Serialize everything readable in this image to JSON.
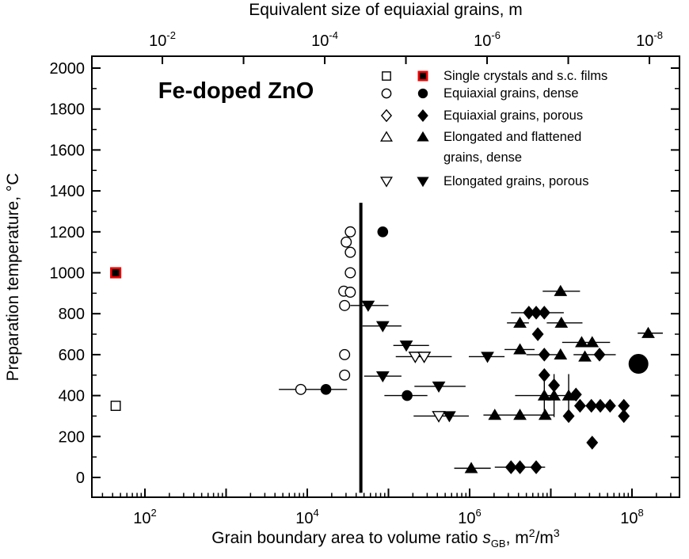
{
  "figure": {
    "top_axis_title": "Equivalent size of equiaxial grains, m",
    "y_axis_title": "Preparation temperature, °C",
    "annotation": "Fe-doped ZnO",
    "bottom_axis_title": {
      "prefix": "Grain boundary area to volume ratio ",
      "symbol": "s",
      "symbol_sub": "GB",
      "mid": ", m",
      "sup_a": "2",
      "mid2": "/m",
      "sup_b": "3"
    }
  },
  "legend": {
    "entries": [
      {
        "symbol": "square",
        "filled_edge": "#ee0000",
        "lines": [
          "Single crystals and s.c. films"
        ]
      },
      {
        "symbol": "circle",
        "lines": [
          "Equiaxial grains, dense"
        ]
      },
      {
        "symbol": "diamond",
        "lines": [
          "Equiaxial grains, porous"
        ]
      },
      {
        "symbol": "triangle-up",
        "lines": [
          "Elongated and flattened",
          "grains, dense"
        ]
      },
      {
        "symbol": "triangle-down",
        "lines": [
          "Elongated grains, porous"
        ]
      }
    ]
  },
  "chart_data": {
    "type": "scatter",
    "title": "Fe-doped ZnO",
    "x_axis": {
      "label": "Grain boundary area to volume ratio s_GB, m2/m3",
      "scale": "log10",
      "range_log": [
        1.35,
        8.59
      ],
      "labeled_ticks": [
        {
          "log": 2,
          "exp": "2"
        },
        {
          "log": 4,
          "exp": "4"
        },
        {
          "log": 6,
          "exp": "6"
        },
        {
          "log": 8,
          "exp": "8"
        }
      ],
      "decade_ticks": [
        2,
        3,
        4,
        5,
        6,
        7,
        8
      ]
    },
    "y_axis": {
      "label": "Preparation temperature, °C",
      "range": [
        -97,
        2058
      ],
      "major_ticks": [
        0,
        200,
        400,
        600,
        800,
        1000,
        1200,
        1400,
        1600,
        1800,
        2000
      ],
      "minor_step": 100
    },
    "top_axis": {
      "label": "Equivalent size of equiaxial grains, m",
      "labeled_ticks": [
        {
          "log_s": 2.215,
          "exp": "-2"
        },
        {
          "log_s": 4.215,
          "exp": "-4"
        },
        {
          "log_s": 6.215,
          "exp": "-6"
        },
        {
          "log_s": 8.215,
          "exp": "-8"
        }
      ],
      "minor_ticks_log_s": [
        3.215,
        5.215,
        7.215
      ]
    },
    "vertical_line": {
      "log_s": 4.66,
      "t_from": -75,
      "t_to": 1342
    },
    "point_format": "x = log10(s_GB in m2/m3), t = preparation temperature °C, xe = horizontal error bar [log10 lo, log10 hi], ye = vertical error bar [t lo, t hi], big = large marker",
    "series": [
      {
        "id": "single-crystal-open",
        "legend": "Single crystals and s.c. films",
        "symbol": "square",
        "filled": false,
        "points": [
          {
            "x": 1.64,
            "t": 350
          }
        ]
      },
      {
        "id": "single-crystal-filled",
        "legend": "Single crystals and s.c. films",
        "symbol": "square",
        "filled": true,
        "edge": "#ee0000",
        "points": [
          {
            "x": 1.64,
            "t": 1000
          }
        ]
      },
      {
        "id": "equiaxial-dense-open",
        "legend": "Equiaxial grains, dense",
        "symbol": "circle",
        "filled": false,
        "points": [
          {
            "x": 4.53,
            "t": 1200
          },
          {
            "x": 4.48,
            "t": 1150
          },
          {
            "x": 4.53,
            "t": 1100
          },
          {
            "x": 4.53,
            "t": 1000
          },
          {
            "x": 4.45,
            "t": 910
          },
          {
            "x": 4.53,
            "t": 905
          },
          {
            "x": 4.46,
            "t": 840
          },
          {
            "x": 4.46,
            "t": 600
          },
          {
            "x": 4.46,
            "t": 500
          },
          {
            "x": 3.92,
            "t": 430,
            "xe": [
              3.65,
              4.49
            ]
          }
        ]
      },
      {
        "id": "equiaxial-dense-filled",
        "legend": "Equiaxial grains, dense",
        "symbol": "circle",
        "filled": true,
        "points": [
          {
            "x": 4.93,
            "t": 1200
          },
          {
            "x": 4.23,
            "t": 430
          },
          {
            "x": 5.23,
            "t": 400,
            "xe": [
              4.95,
              5.48
            ]
          },
          {
            "x": 8.08,
            "t": 555,
            "big": true
          }
        ]
      },
      {
        "id": "equiaxial-porous-filled",
        "legend": "Equiaxial grains, porous",
        "symbol": "diamond",
        "filled": true,
        "points": [
          {
            "x": 6.73,
            "t": 805,
            "xe": [
              6.51,
              7.16
            ]
          },
          {
            "x": 6.82,
            "t": 805
          },
          {
            "x": 6.92,
            "t": 805
          },
          {
            "x": 6.84,
            "t": 700
          },
          {
            "x": 6.92,
            "t": 600,
            "xe": [
              6.7,
              7.16
            ]
          },
          {
            "x": 7.6,
            "t": 600,
            "xe": [
              7.28,
              7.8
            ]
          },
          {
            "x": 6.92,
            "t": 500
          },
          {
            "x": 7.04,
            "t": 450
          },
          {
            "x": 7.31,
            "t": 405
          },
          {
            "x": 7.36,
            "t": 350
          },
          {
            "x": 7.5,
            "t": 350
          },
          {
            "x": 7.61,
            "t": 350
          },
          {
            "x": 7.73,
            "t": 350
          },
          {
            "x": 7.9,
            "t": 350
          },
          {
            "x": 7.9,
            "t": 300
          },
          {
            "x": 7.22,
            "t": 300
          },
          {
            "x": 7.51,
            "t": 170
          },
          {
            "x": 6.51,
            "t": 50,
            "xe": [
              6.31,
              6.93
            ]
          },
          {
            "x": 6.62,
            "t": 50
          },
          {
            "x": 6.82,
            "t": 50
          }
        ]
      },
      {
        "id": "elongated-dense-filled",
        "legend": "Elongated and flattened grains, dense",
        "symbol": "triangle-up",
        "filled": true,
        "points": [
          {
            "x": 7.12,
            "t": 910,
            "xe": [
              6.9,
              7.36
            ]
          },
          {
            "x": 6.62,
            "t": 755,
            "xe": [
              6.46,
              6.73
            ]
          },
          {
            "x": 7.13,
            "t": 755,
            "xe": [
              6.95,
              7.39
            ]
          },
          {
            "x": 7.38,
            "t": 660,
            "xe": [
              7.14,
              7.73
            ]
          },
          {
            "x": 7.51,
            "t": 660
          },
          {
            "x": 6.62,
            "t": 625,
            "xe": [
              6.43,
              6.8
            ]
          },
          {
            "x": 7.12,
            "t": 600
          },
          {
            "x": 7.42,
            "t": 590
          },
          {
            "x": 8.2,
            "t": 705,
            "xe": [
              8.07,
              8.38
            ]
          },
          {
            "x": 6.92,
            "t": 400,
            "ye": [
              295,
              505
            ]
          },
          {
            "x": 7.04,
            "t": 400,
            "ye": [
              295,
              505
            ]
          },
          {
            "x": 7.22,
            "t": 400,
            "xe": [
              6.56,
              7.24
            ],
            "ye": [
              295,
              505
            ]
          },
          {
            "x": 6.31,
            "t": 305,
            "xe": [
              6.17,
              7.04
            ]
          },
          {
            "x": 6.62,
            "t": 305
          },
          {
            "x": 6.93,
            "t": 305
          },
          {
            "x": 6.02,
            "t": 45,
            "xe": [
              5.81,
              6.26
            ]
          }
        ]
      },
      {
        "id": "elongated-porous-open",
        "legend": "Elongated grains, porous",
        "symbol": "triangle-down",
        "filled": false,
        "points": [
          {
            "x": 5.33,
            "t": 590
          },
          {
            "x": 5.44,
            "t": 590,
            "xe": [
              5.09,
              5.78
            ]
          },
          {
            "x": 5.62,
            "t": 300
          }
        ]
      },
      {
        "id": "elongated-porous-filled",
        "legend": "Elongated grains, porous",
        "symbol": "triangle-down",
        "filled": true,
        "points": [
          {
            "x": 4.75,
            "t": 840,
            "xe": [
              4.53,
              5.0
            ]
          },
          {
            "x": 4.93,
            "t": 740,
            "xe": [
              4.68,
              5.16
            ]
          },
          {
            "x": 5.22,
            "t": 645,
            "xe": [
              5.06,
              5.5
            ]
          },
          {
            "x": 6.22,
            "t": 590,
            "xe": [
              5.99,
              6.43
            ]
          },
          {
            "x": 4.93,
            "t": 495,
            "xe": [
              4.7,
              5.16
            ]
          },
          {
            "x": 5.62,
            "t": 445,
            "xe": [
              5.32,
              5.95
            ]
          },
          {
            "x": 5.75,
            "t": 300,
            "xe": [
              5.31,
              5.99
            ]
          }
        ]
      }
    ]
  }
}
